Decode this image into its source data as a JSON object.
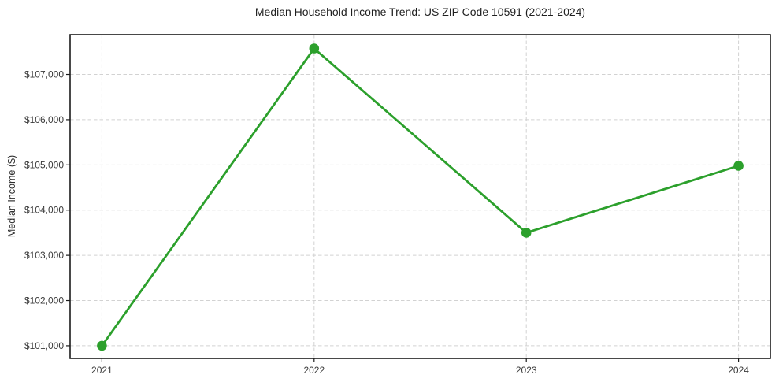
{
  "figure": {
    "background": "#ffffff"
  },
  "chart_data": {
    "type": "line",
    "title": "Median Household Income Trend: US ZIP Code 10591 (2021-2024)",
    "xlabel": "",
    "ylabel": "Median Income ($)",
    "categories": [
      "2021",
      "2022",
      "2023",
      "2024"
    ],
    "values": [
      101000,
      107575,
      103500,
      104980
    ],
    "yticks": [
      101000,
      102000,
      103000,
      104000,
      105000,
      106000,
      107000
    ],
    "ytick_labels": [
      "$101,000",
      "$102,000",
      "$103,000",
      "$104,000",
      "$105,000",
      "$106,000",
      "$107,000"
    ],
    "ylim": [
      100720,
      107880
    ],
    "grid": true,
    "legend_position": "none",
    "line_color": "#2ca02c",
    "marker": "circle",
    "grid_color": "#d2d2d2",
    "axis_color": "#1c1c1c",
    "tick_label_color": "#3a3a3a"
  }
}
